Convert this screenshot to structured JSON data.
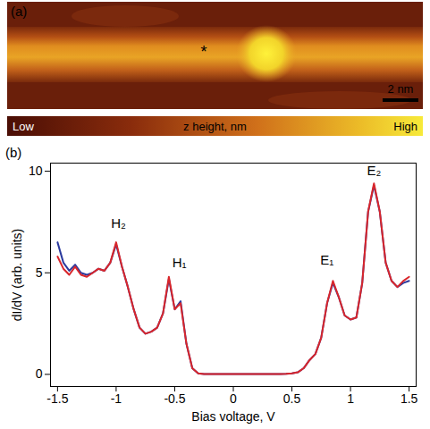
{
  "chart_data": [
    {
      "type": "image",
      "panel": "(a)",
      "annotations": [
        "*"
      ],
      "scale_bar": "2 nm",
      "colorbar": {
        "low": "Low",
        "label": "z height, nm",
        "high": "High"
      }
    },
    {
      "type": "line",
      "panel": "(b)",
      "x_label": "Bias voltage, V",
      "y_label": "dI/dV (arb. units)",
      "x": [
        -1.5,
        -1.45,
        -1.4,
        -1.35,
        -1.3,
        -1.25,
        -1.2,
        -1.15,
        -1.1,
        -1.05,
        -1.0,
        -0.95,
        -0.9,
        -0.85,
        -0.8,
        -0.75,
        -0.7,
        -0.65,
        -0.6,
        -0.55,
        -0.5,
        -0.45,
        -0.4,
        -0.35,
        -0.3,
        -0.25,
        -0.2,
        -0.15,
        -0.1,
        -0.05,
        0,
        0.05,
        0.1,
        0.15,
        0.2,
        0.25,
        0.3,
        0.35,
        0.4,
        0.45,
        0.5,
        0.55,
        0.6,
        0.65,
        0.7,
        0.75,
        0.8,
        0.85,
        0.9,
        0.95,
        1.0,
        1.05,
        1.1,
        1.15,
        1.2,
        1.25,
        1.3,
        1.35,
        1.4,
        1.45,
        1.5
      ],
      "series": [
        {
          "color": "#2b3a9e",
          "values": [
            6.5,
            5.5,
            5.1,
            5.4,
            5.0,
            4.9,
            5.0,
            5.2,
            5.1,
            5.5,
            6.4,
            5.3,
            4.3,
            3.2,
            2.3,
            2.0,
            2.1,
            2.3,
            3.0,
            4.7,
            3.2,
            3.6,
            1.5,
            0.3,
            0.05,
            0.02,
            0.02,
            0.02,
            0.02,
            0.02,
            0.02,
            0.02,
            0.02,
            0.02,
            0.02,
            0.02,
            0.02,
            0.02,
            0.02,
            0.03,
            0.05,
            0.1,
            0.3,
            0.7,
            1.0,
            1.8,
            3.5,
            4.5,
            3.8,
            2.9,
            2.7,
            2.8,
            4.5,
            8.0,
            9.3,
            8.0,
            5.5,
            4.6,
            4.3,
            4.5,
            4.6
          ]
        },
        {
          "color": "#d9262b",
          "values": [
            5.8,
            5.2,
            4.9,
            5.3,
            4.9,
            4.8,
            5.0,
            5.2,
            5.1,
            5.5,
            6.5,
            5.3,
            4.3,
            3.2,
            2.3,
            2.0,
            2.1,
            2.3,
            3.0,
            4.8,
            3.2,
            3.5,
            1.5,
            0.3,
            0.05,
            0.02,
            0.02,
            0.02,
            0.02,
            0.02,
            0.02,
            0.02,
            0.02,
            0.02,
            0.02,
            0.02,
            0.02,
            0.02,
            0.02,
            0.03,
            0.05,
            0.1,
            0.3,
            0.7,
            1.0,
            1.8,
            3.5,
            4.6,
            3.8,
            2.9,
            2.7,
            2.8,
            4.5,
            8.0,
            9.4,
            8.0,
            5.5,
            4.6,
            4.3,
            4.6,
            4.8
          ]
        }
      ],
      "annotations": [
        {
          "text": "H₂",
          "x": -0.98,
          "y": 7.4
        },
        {
          "text": "H₁",
          "x": -0.46,
          "y": 5.5
        },
        {
          "text": "E₁",
          "x": 0.8,
          "y": 5.6
        },
        {
          "text": "E₂",
          "x": 1.2,
          "y": 10.0
        }
      ],
      "xlim": [
        -1.56,
        1.56
      ],
      "xticks": [
        -1.5,
        -1,
        -0.5,
        0,
        0.5,
        1,
        1.5
      ],
      "ylim": [
        -0.6,
        10.4
      ],
      "yticks": [
        0,
        5,
        10
      ]
    }
  ]
}
